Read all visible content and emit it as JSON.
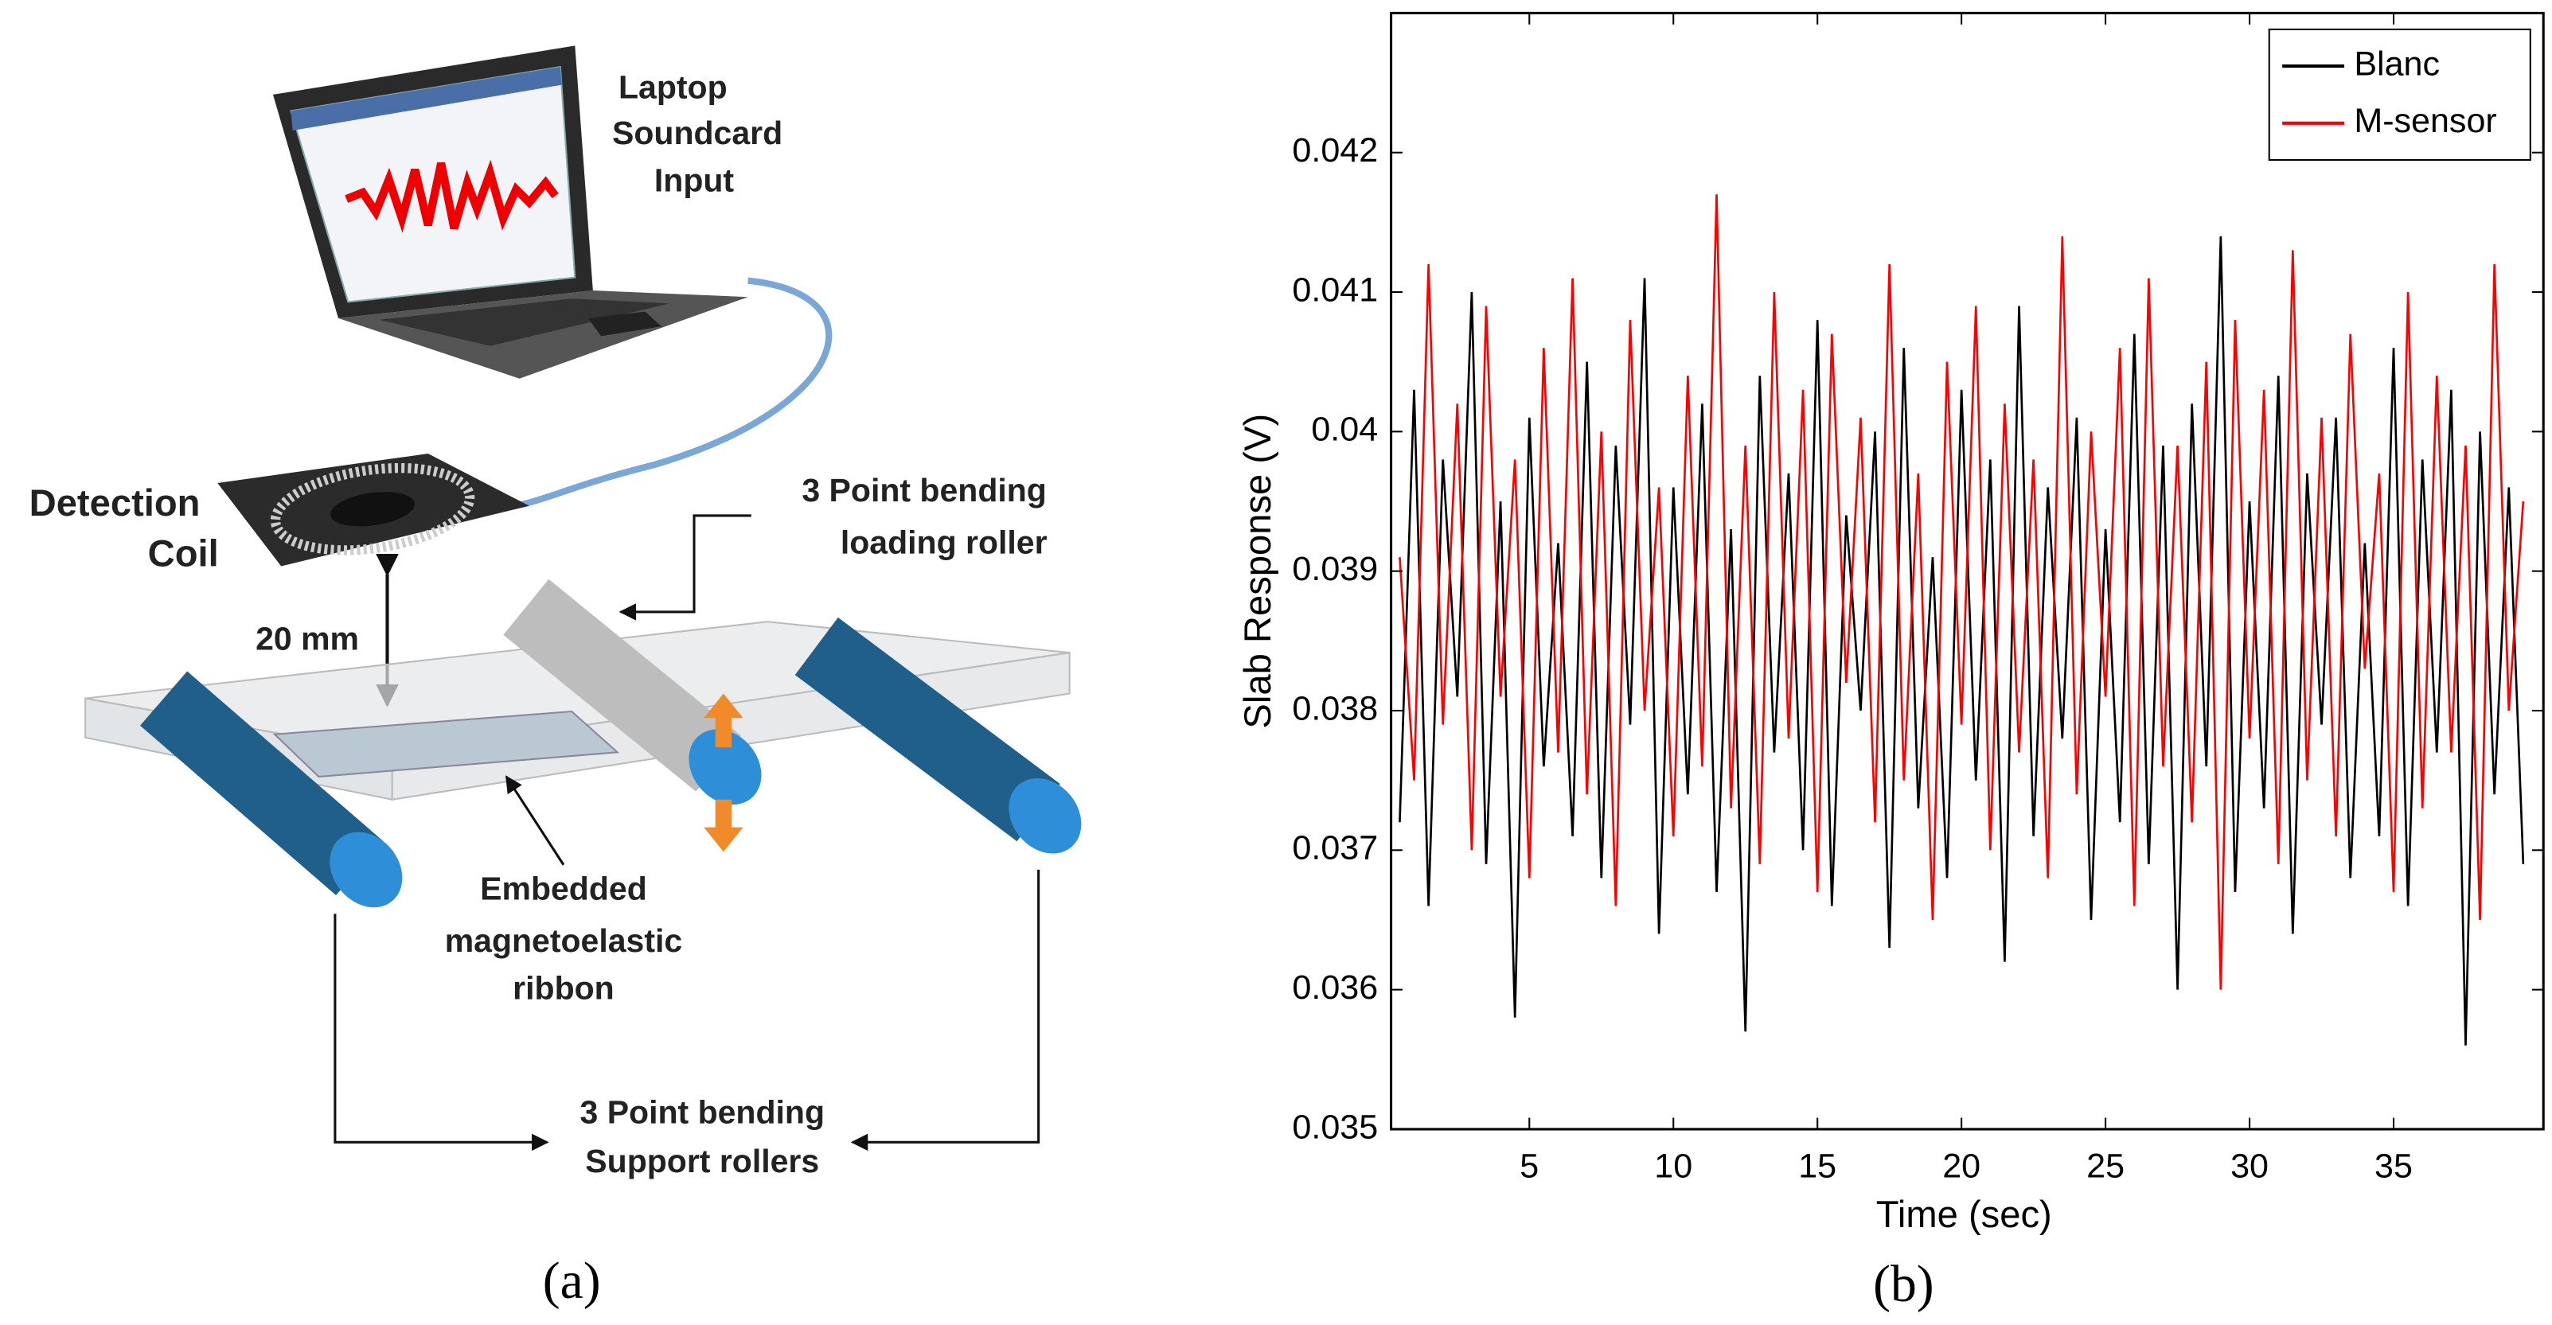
{
  "panel_a": {
    "labels": {
      "laptop": [
        "Laptop",
        "Soundcard",
        "Input"
      ],
      "coil": [
        "Detection",
        "Coil"
      ],
      "loading_roller": [
        "3 Point bending",
        "loading roller"
      ],
      "distance": "20 mm",
      "ribbon": [
        "Embedded",
        "magnetoelastic",
        "ribbon"
      ],
      "support_rollers": [
        "3 Point bending",
        "Support rollers"
      ]
    },
    "caption": "(a)"
  },
  "chart_data": {
    "type": "line",
    "caption": "(b)",
    "x_label": "Time (sec)",
    "y_label": "Slab Response (V)",
    "legend": "top-right",
    "grid": false,
    "xlim": [
      0.2,
      40.2
    ],
    "ylim": [
      0.035,
      0.043
    ],
    "xticks": [
      5,
      10,
      15,
      20,
      25,
      30,
      35
    ],
    "yticks": [
      0.035,
      0.036,
      0.037,
      0.038,
      0.039,
      0.04,
      0.041,
      0.042
    ],
    "x": [
      0.5,
      1,
      1.5,
      2,
      2.5,
      3,
      3.5,
      4,
      4.5,
      5,
      5.5,
      6,
      6.5,
      7,
      7.5,
      8,
      8.5,
      9,
      9.5,
      10,
      10.5,
      11,
      11.5,
      12,
      12.5,
      13,
      13.5,
      14,
      14.5,
      15,
      15.5,
      16,
      16.5,
      17,
      17.5,
      18,
      18.5,
      19,
      19.5,
      20,
      20.5,
      21,
      21.5,
      22,
      22.5,
      23,
      23.5,
      24,
      24.5,
      25,
      25.5,
      26,
      26.5,
      27,
      27.5,
      28,
      28.5,
      29,
      29.5,
      30,
      30.5,
      31,
      31.5,
      32,
      32.5,
      33,
      33.5,
      34,
      34.5,
      35,
      35.5,
      36,
      36.5,
      37,
      37.5,
      38,
      38.5,
      39,
      39.5
    ],
    "series": [
      {
        "name": "Blanc",
        "color": "#000000",
        "values": [
          0.0372,
          0.0403,
          0.0366,
          0.0398,
          0.0381,
          0.041,
          0.0369,
          0.0395,
          0.0358,
          0.0401,
          0.0376,
          0.0392,
          0.0371,
          0.0405,
          0.0368,
          0.0399,
          0.0379,
          0.0411,
          0.0364,
          0.0396,
          0.0374,
          0.0402,
          0.0367,
          0.0393,
          0.0357,
          0.0404,
          0.0377,
          0.0397,
          0.037,
          0.0408,
          0.0366,
          0.0394,
          0.038,
          0.04,
          0.0363,
          0.0406,
          0.0373,
          0.0391,
          0.0368,
          0.0403,
          0.0375,
          0.0398,
          0.0362,
          0.0409,
          0.0371,
          0.0396,
          0.0378,
          0.0401,
          0.0365,
          0.0393,
          0.0372,
          0.0407,
          0.0369,
          0.0399,
          0.036,
          0.0402,
          0.0376,
          0.0414,
          0.0367,
          0.0395,
          0.0373,
          0.0404,
          0.0364,
          0.0397,
          0.0379,
          0.0401,
          0.0368,
          0.0392,
          0.0371,
          0.0406,
          0.0366,
          0.0398,
          0.0377,
          0.0403,
          0.0356,
          0.04,
          0.0374,
          0.0396,
          0.0369
        ]
      },
      {
        "name": "M-sensor",
        "color": "#ff0000",
        "values": [
          0.0391,
          0.0375,
          0.0412,
          0.0379,
          0.0402,
          0.037,
          0.0409,
          0.0381,
          0.0398,
          0.0368,
          0.0406,
          0.0377,
          0.0411,
          0.0374,
          0.04,
          0.0366,
          0.0408,
          0.038,
          0.0396,
          0.0371,
          0.0404,
          0.0376,
          0.0417,
          0.0373,
          0.0399,
          0.0369,
          0.041,
          0.0378,
          0.0403,
          0.0367,
          0.0407,
          0.0382,
          0.0401,
          0.0372,
          0.0412,
          0.0375,
          0.0397,
          0.0365,
          0.0405,
          0.0379,
          0.0409,
          0.037,
          0.0402,
          0.0377,
          0.0398,
          0.0368,
          0.0414,
          0.0374,
          0.04,
          0.0381,
          0.0406,
          0.0366,
          0.0411,
          0.0376,
          0.0399,
          0.0372,
          0.0405,
          0.036,
          0.0408,
          0.0378,
          0.0403,
          0.0369,
          0.0413,
          0.0375,
          0.0401,
          0.0371,
          0.0407,
          0.0383,
          0.0397,
          0.0367,
          0.041,
          0.0373,
          0.0404,
          0.0377,
          0.0399,
          0.0365,
          0.0412,
          0.038,
          0.0395
        ]
      }
    ]
  }
}
